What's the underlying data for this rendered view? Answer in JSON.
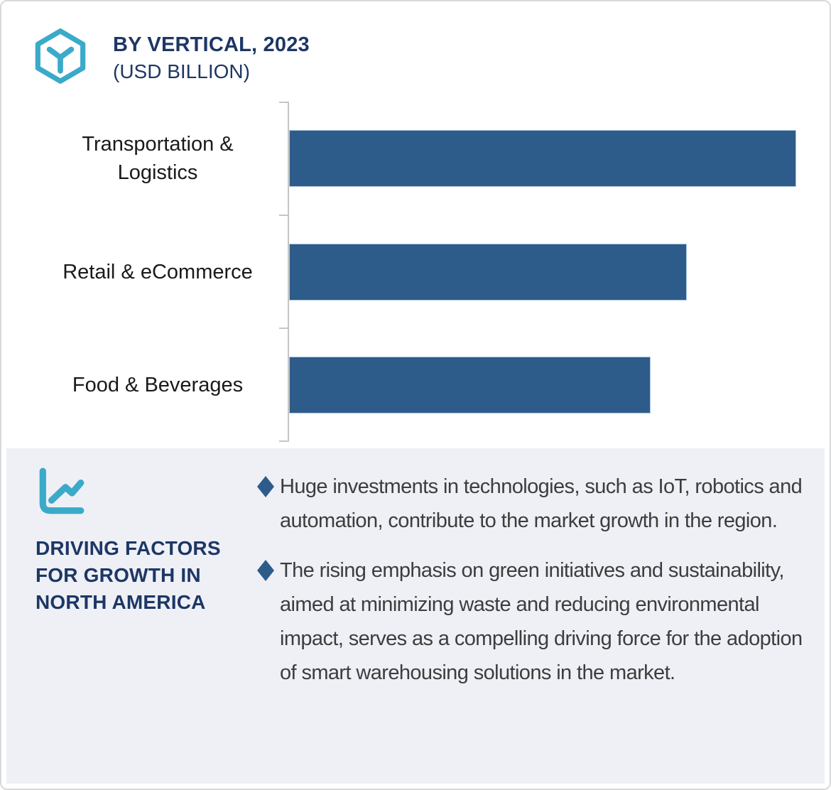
{
  "header": {
    "title": "BY VERTICAL, 2023",
    "subtitle": "(USD BILLION)",
    "icon": "hexagon-cube-icon"
  },
  "chart_data": {
    "type": "bar",
    "orientation": "horizontal",
    "title": "BY VERTICAL, 2023 (USD BILLION)",
    "unit": "USD Billion",
    "categories": [
      "Transportation & Logistics",
      "Retail & eCommerce",
      "Food & Beverages"
    ],
    "values_pct_of_max": [
      100,
      78.4,
      71.3
    ],
    "value_labels_shown": false,
    "axis_tick_labels_shown": false,
    "grid": false,
    "legend": false,
    "bar_color": "#2e5c8a",
    "axis_color": "#c5c5c5"
  },
  "driving_factors": {
    "icon": "line-chart-icon",
    "heading": "DRIVING FACTORS FOR GROWTH IN NORTH AMERICA",
    "bullet_marker": "diamond",
    "marker_color": "#2e5c8a",
    "bullets": [
      "Huge investments in technologies, such as IoT, robotics and automation, contribute to the market growth in the region.",
      "The rising emphasis on green initiatives and sustainability, aimed at minimizing waste and reducing environmental impact, serves as a compelling driving force for the adoption of smart warehousing solutions in the market."
    ]
  },
  "colors": {
    "accent_teal": "#3baac9",
    "navy": "#1d3765",
    "bar_blue": "#2e5c8a",
    "body_text": "#3d3d3d",
    "panel_background": "#eef0f6",
    "card_border": "#d9d9d9"
  }
}
